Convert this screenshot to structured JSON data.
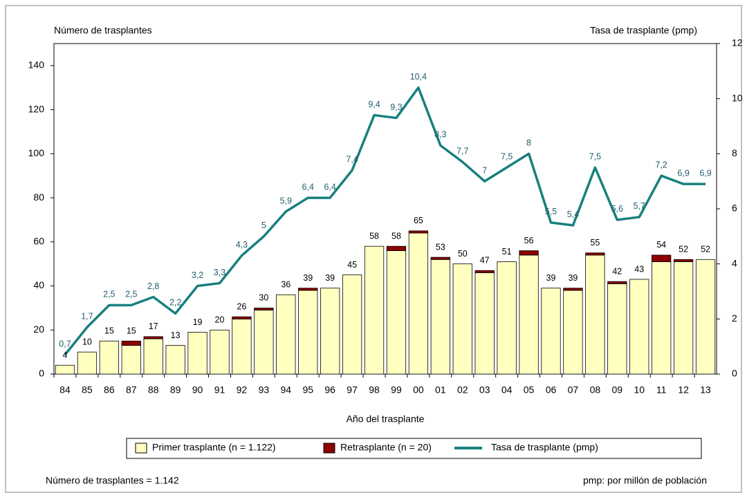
{
  "chart_data": {
    "type": "bar",
    "ylabel": "Número de trasplantes",
    "y2label": "Tasa de trasplante (pmp)",
    "xlabel": "Año del trasplante",
    "categories": [
      "84",
      "85",
      "86",
      "87",
      "88",
      "89",
      "90",
      "91",
      "92",
      "93",
      "94",
      "95",
      "96",
      "97",
      "98",
      "99",
      "00",
      "01",
      "02",
      "03",
      "04",
      "05",
      "06",
      "07",
      "08",
      "09",
      "10",
      "11",
      "12",
      "13"
    ],
    "series": [
      {
        "name": "Primer trasplante (n = 1.122)",
        "color": "#ffffc0",
        "values": [
          4,
          10,
          15,
          13,
          16,
          13,
          19,
          20,
          25,
          29,
          36,
          38,
          39,
          45,
          58,
          56,
          64,
          52,
          50,
          46,
          51,
          54,
          39,
          38,
          54,
          41,
          43,
          51,
          51,
          52
        ]
      },
      {
        "name": "Retrasplante (n = 20)",
        "color": "#8b0000",
        "values": [
          0,
          0,
          0,
          2,
          1,
          0,
          0,
          0,
          1,
          1,
          0,
          1,
          0,
          0,
          0,
          2,
          1,
          1,
          0,
          1,
          0,
          2,
          0,
          1,
          1,
          1,
          0,
          3,
          1,
          0
        ]
      },
      {
        "name": "Tasa de trasplante (pmp)",
        "color": "#17807e",
        "type": "line",
        "axis": "y2",
        "values": [
          0.7,
          1.7,
          2.5,
          2.5,
          2.8,
          2.2,
          3.2,
          3.3,
          4.3,
          5,
          5.9,
          6.4,
          6.4,
          7.4,
          9.4,
          9.3,
          10.4,
          8.3,
          7.7,
          7,
          7.5,
          8,
          5.5,
          5.4,
          7.5,
          5.6,
          5.7,
          7.2,
          6.9,
          6.9
        ],
        "value_labels": [
          "0,7",
          "1,7",
          "2,5",
          "2,5",
          "2,8",
          "2,2",
          "3,2",
          "3,3",
          "4,3",
          "5",
          "5,9",
          "6,4",
          "6,4",
          "7,4",
          "9,4",
          "9,3",
          "10,4",
          "8,3",
          "7,7",
          "7",
          "7,5",
          "8",
          "5,5",
          "5,4",
          "7,5",
          "5,6",
          "5,7",
          "7,2",
          "6,9",
          "6,9"
        ]
      }
    ],
    "totals": [
      4,
      10,
      15,
      15,
      17,
      13,
      19,
      20,
      26,
      30,
      36,
      39,
      39,
      45,
      58,
      58,
      65,
      53,
      50,
      47,
      51,
      56,
      39,
      39,
      55,
      42,
      43,
      54,
      52,
      52
    ],
    "ylim": [
      0,
      150
    ],
    "yticks": [
      0,
      20,
      40,
      60,
      80,
      100,
      120,
      140
    ],
    "y2lim": [
      0,
      12
    ],
    "y2ticks": [
      0,
      2,
      4,
      6,
      8,
      10,
      12
    ],
    "grid": false,
    "legend": "bottom",
    "notes": [
      "Número de trasplantes = 1.142",
      "pmp: por millón de población"
    ]
  }
}
